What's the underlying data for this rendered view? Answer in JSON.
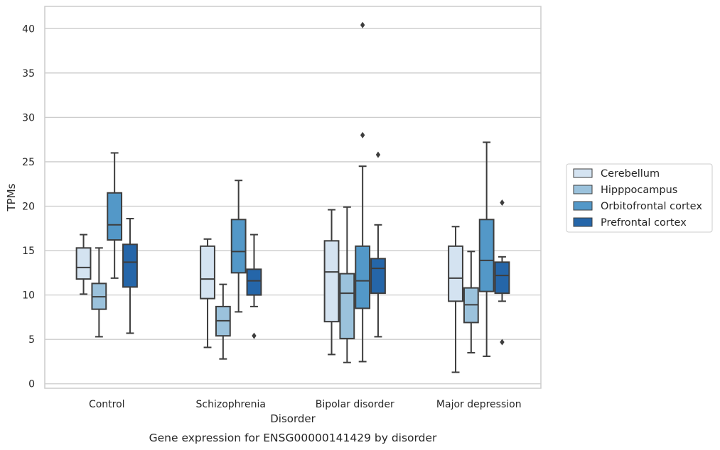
{
  "chart_data": {
    "type": "box",
    "title": "",
    "caption": "Gene expression for ENSG00000141429 by disorder",
    "xlabel": "Disorder",
    "ylabel": "TPMs",
    "ylim": [
      -0.5,
      42.5
    ],
    "yticks": [
      0,
      5,
      10,
      15,
      20,
      25,
      30,
      35,
      40
    ],
    "grid": "horizontal",
    "legend_position": "right",
    "categories": [
      "Control",
      "Schizophrenia",
      "Bipolar disorder",
      "Major depression"
    ],
    "series": [
      {
        "name": "Cerebellum",
        "color": "#d4e3f1",
        "boxes": [
          {
            "whislo": 10.1,
            "q1": 11.8,
            "med": 13.1,
            "q3": 15.3,
            "whishi": 16.8,
            "fliers": []
          },
          {
            "whislo": 4.1,
            "q1": 9.6,
            "med": 11.8,
            "q3": 15.5,
            "whishi": 16.3,
            "fliers": []
          },
          {
            "whislo": 3.3,
            "q1": 7.0,
            "med": 12.6,
            "q3": 16.1,
            "whishi": 19.6,
            "fliers": []
          },
          {
            "whislo": 1.3,
            "q1": 9.3,
            "med": 11.9,
            "q3": 15.5,
            "whishi": 17.7,
            "fliers": []
          }
        ]
      },
      {
        "name": "Hipppocampus",
        "color": "#9bc2dc",
        "boxes": [
          {
            "whislo": 5.3,
            "q1": 8.4,
            "med": 9.8,
            "q3": 11.3,
            "whishi": 15.3,
            "fliers": []
          },
          {
            "whislo": 2.8,
            "q1": 5.4,
            "med": 7.1,
            "q3": 8.7,
            "whishi": 11.2,
            "fliers": []
          },
          {
            "whislo": 2.4,
            "q1": 5.1,
            "med": 10.2,
            "q3": 12.4,
            "whishi": 19.9,
            "fliers": []
          },
          {
            "whislo": 3.5,
            "q1": 6.9,
            "med": 8.9,
            "q3": 10.8,
            "whishi": 14.9,
            "fliers": []
          }
        ]
      },
      {
        "name": "Orbitofrontal cortex",
        "color": "#5398c8",
        "boxes": [
          {
            "whislo": 11.9,
            "q1": 16.2,
            "med": 17.9,
            "q3": 21.5,
            "whishi": 26.0,
            "fliers": []
          },
          {
            "whislo": 8.1,
            "q1": 12.5,
            "med": 14.9,
            "q3": 18.5,
            "whishi": 22.9,
            "fliers": []
          },
          {
            "whislo": 2.5,
            "q1": 8.5,
            "med": 11.6,
            "q3": 15.5,
            "whishi": 24.5,
            "fliers": [
              28.0,
              40.4
            ]
          },
          {
            "whislo": 3.1,
            "q1": 10.4,
            "med": 13.9,
            "q3": 18.5,
            "whishi": 27.2,
            "fliers": []
          }
        ]
      },
      {
        "name": "Prefrontal cortex",
        "color": "#2566a9",
        "boxes": [
          {
            "whislo": 5.7,
            "q1": 10.9,
            "med": 13.7,
            "q3": 15.7,
            "whishi": 18.6,
            "fliers": []
          },
          {
            "whislo": 8.7,
            "q1": 10.0,
            "med": 11.6,
            "q3": 12.9,
            "whishi": 16.8,
            "fliers": [
              5.4
            ]
          },
          {
            "whislo": 5.3,
            "q1": 10.2,
            "med": 13.0,
            "q3": 14.1,
            "whishi": 17.9,
            "fliers": [
              25.8
            ]
          },
          {
            "whislo": 9.3,
            "q1": 10.2,
            "med": 12.2,
            "q3": 13.7,
            "whishi": 14.3,
            "fliers": [
              4.7,
              20.4
            ]
          }
        ]
      }
    ]
  }
}
